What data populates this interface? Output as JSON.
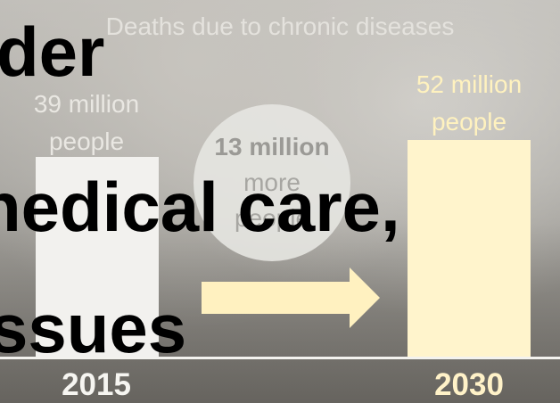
{
  "slide": {
    "chart_title": "Deaths due to chronic diseases",
    "bars": [
      {
        "year": "2015",
        "value_label": "39 million people",
        "value": 39
      },
      {
        "year": "2030",
        "value_label": "52 million people",
        "value": 52
      }
    ],
    "difference": {
      "line1": "13 million",
      "line2": "more",
      "line3": "people"
    },
    "overlay_lines": [
      "der",
      "nedical care,",
      "ssues"
    ]
  },
  "colors": {
    "bar_2015": "#f2f1ee",
    "bar_2030": "#fff4cc",
    "arrow": "#fff1c0",
    "overlay_text": "#000000"
  }
}
